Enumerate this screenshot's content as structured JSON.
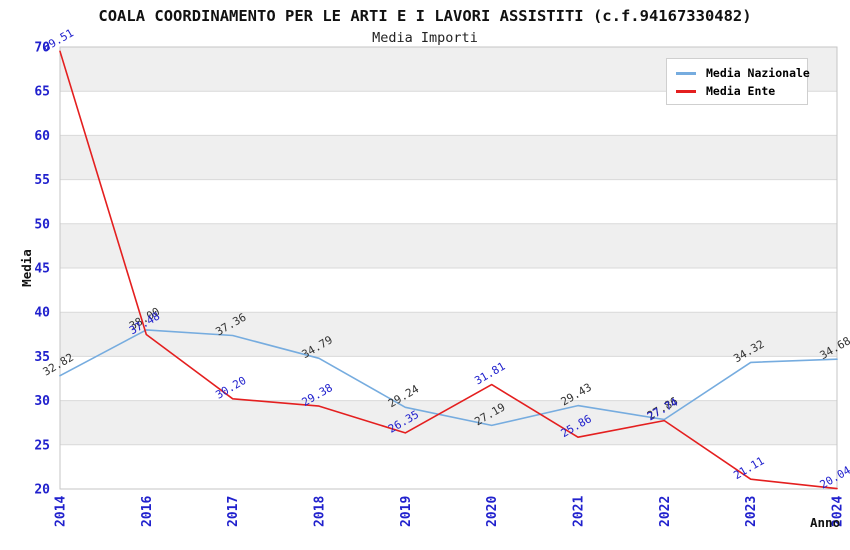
{
  "header": {
    "title": "COALA COORDINAMENTO PER LE ARTI E I LAVORI ASSISTITI (c.f.94167330482)",
    "subtitle": "Media Importi"
  },
  "chart_data": {
    "type": "line",
    "x_title": "Anno",
    "y_title": "Media",
    "categories": [
      "2014",
      "2016",
      "2017",
      "2018",
      "2019",
      "2020",
      "2021",
      "2022",
      "2023",
      "2024"
    ],
    "series": [
      {
        "name": "Media Nazionale",
        "color": "#76acdf",
        "label_color": "#333333",
        "values": [
          32.82,
          38.0,
          37.36,
          34.79,
          29.24,
          27.19,
          29.43,
          27.86,
          34.32,
          34.68
        ]
      },
      {
        "name": "Media Ente",
        "color": "#e41f1f",
        "label_color": "#2121cd",
        "values": [
          69.51,
          37.48,
          30.2,
          29.38,
          26.35,
          31.81,
          25.86,
          27.74,
          21.11,
          20.04
        ]
      }
    ],
    "ylim": [
      20,
      70
    ],
    "yticks": [
      20,
      25,
      30,
      35,
      40,
      45,
      50,
      55,
      60,
      65,
      70
    ],
    "value_decimals": 2,
    "grid": true,
    "legend_position": "top-right",
    "band_colors": [
      "#efefef",
      "#ffffff"
    ],
    "grid_color": "#d9d9d9",
    "plot_border_color": "#c6c6c6",
    "axis_tick_color": "#2121cd",
    "axis_title_color": "#111111"
  }
}
